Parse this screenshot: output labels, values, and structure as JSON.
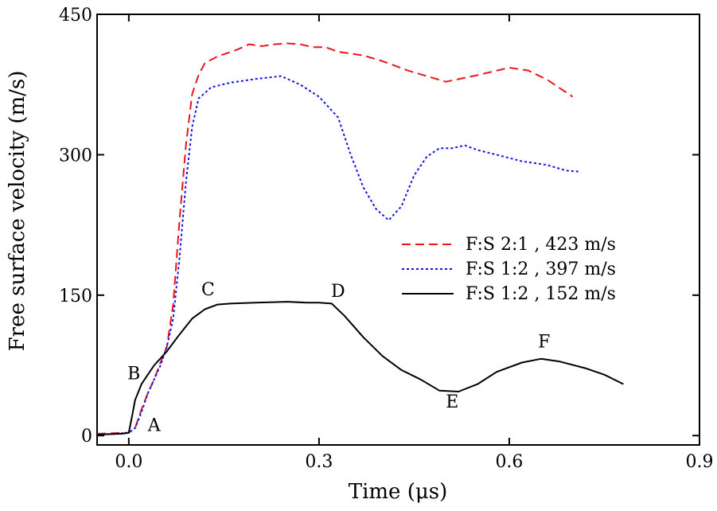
{
  "chart_data": {
    "type": "line",
    "xlabel": "Time (μs)",
    "ylabel": "Free surface velocity (m/s)",
    "xlim": [
      -0.05,
      0.9
    ],
    "ylim": [
      -10,
      450
    ],
    "x_ticks": [
      0.0,
      0.3,
      0.6,
      0.9
    ],
    "x_tick_labels": [
      "0.0",
      "0.3",
      "0.6",
      "0.9"
    ],
    "y_ticks": [
      0,
      150,
      300,
      450
    ],
    "y_tick_labels": [
      "0",
      "150",
      "300",
      "450"
    ],
    "grid": false,
    "legend_position": "center-right",
    "series": [
      {
        "name": "F:S 2:1 , 423 m/s",
        "color": "#e8161b",
        "style": "dashed",
        "points": [
          [
            -0.05,
            2
          ],
          [
            0.0,
            3
          ],
          [
            0.01,
            8
          ],
          [
            0.02,
            28
          ],
          [
            0.03,
            45
          ],
          [
            0.04,
            60
          ],
          [
            0.05,
            78
          ],
          [
            0.06,
            95
          ],
          [
            0.07,
            140
          ],
          [
            0.08,
            230
          ],
          [
            0.09,
            310
          ],
          [
            0.1,
            365
          ],
          [
            0.11,
            385
          ],
          [
            0.12,
            398
          ],
          [
            0.14,
            405
          ],
          [
            0.17,
            412
          ],
          [
            0.19,
            418
          ],
          [
            0.21,
            416
          ],
          [
            0.23,
            418
          ],
          [
            0.25,
            419
          ],
          [
            0.27,
            418
          ],
          [
            0.29,
            415
          ],
          [
            0.31,
            415
          ],
          [
            0.33,
            410
          ],
          [
            0.37,
            406
          ],
          [
            0.4,
            400
          ],
          [
            0.44,
            390
          ],
          [
            0.5,
            378
          ],
          [
            0.55,
            385
          ],
          [
            0.6,
            393
          ],
          [
            0.63,
            390
          ],
          [
            0.66,
            380
          ],
          [
            0.7,
            362
          ]
        ]
      },
      {
        "name": "F:S 1:2 , 397 m/s",
        "color": "#1515e0",
        "style": "dotted",
        "points": [
          [
            -0.05,
            1
          ],
          [
            0.0,
            3
          ],
          [
            0.01,
            8
          ],
          [
            0.02,
            25
          ],
          [
            0.03,
            45
          ],
          [
            0.04,
            60
          ],
          [
            0.05,
            75
          ],
          [
            0.06,
            95
          ],
          [
            0.07,
            125
          ],
          [
            0.08,
            190
          ],
          [
            0.09,
            270
          ],
          [
            0.1,
            330
          ],
          [
            0.11,
            360
          ],
          [
            0.13,
            372
          ],
          [
            0.16,
            377
          ],
          [
            0.2,
            381
          ],
          [
            0.24,
            384
          ],
          [
            0.27,
            375
          ],
          [
            0.3,
            362
          ],
          [
            0.33,
            340
          ],
          [
            0.35,
            300
          ],
          [
            0.37,
            265
          ],
          [
            0.39,
            242
          ],
          [
            0.41,
            230
          ],
          [
            0.43,
            245
          ],
          [
            0.45,
            278
          ],
          [
            0.47,
            298
          ],
          [
            0.49,
            307
          ],
          [
            0.51,
            307
          ],
          [
            0.53,
            310
          ],
          [
            0.55,
            305
          ],
          [
            0.58,
            300
          ],
          [
            0.62,
            293
          ],
          [
            0.66,
            289
          ],
          [
            0.69,
            283
          ],
          [
            0.71,
            282
          ]
        ]
      },
      {
        "name": "F:S 1:2 , 152 m/s",
        "color": "#000000",
        "style": "solid",
        "points": [
          [
            -0.05,
            1
          ],
          [
            -0.01,
            2
          ],
          [
            0.0,
            3
          ],
          [
            0.005,
            20
          ],
          [
            0.01,
            38
          ],
          [
            0.02,
            55
          ],
          [
            0.03,
            65
          ],
          [
            0.04,
            75
          ],
          [
            0.06,
            90
          ],
          [
            0.08,
            108
          ],
          [
            0.1,
            125
          ],
          [
            0.12,
            135
          ],
          [
            0.14,
            140
          ],
          [
            0.16,
            141
          ],
          [
            0.2,
            142
          ],
          [
            0.25,
            143
          ],
          [
            0.28,
            142
          ],
          [
            0.3,
            142
          ],
          [
            0.32,
            141
          ],
          [
            0.34,
            128
          ],
          [
            0.37,
            105
          ],
          [
            0.4,
            85
          ],
          [
            0.43,
            70
          ],
          [
            0.46,
            60
          ],
          [
            0.49,
            48
          ],
          [
            0.52,
            47
          ],
          [
            0.55,
            55
          ],
          [
            0.58,
            68
          ],
          [
            0.62,
            78
          ],
          [
            0.65,
            82
          ],
          [
            0.68,
            79
          ],
          [
            0.72,
            72
          ],
          [
            0.75,
            65
          ],
          [
            0.78,
            55
          ]
        ]
      }
    ],
    "annotations": [
      {
        "text": "A",
        "x": 0.04,
        "y": 5
      },
      {
        "text": "B",
        "x": 0.008,
        "y": 60
      },
      {
        "text": "C",
        "x": 0.125,
        "y": 150
      },
      {
        "text": "D",
        "x": 0.33,
        "y": 148
      },
      {
        "text": "E",
        "x": 0.51,
        "y": 30
      },
      {
        "text": "F",
        "x": 0.655,
        "y": 94
      }
    ]
  }
}
